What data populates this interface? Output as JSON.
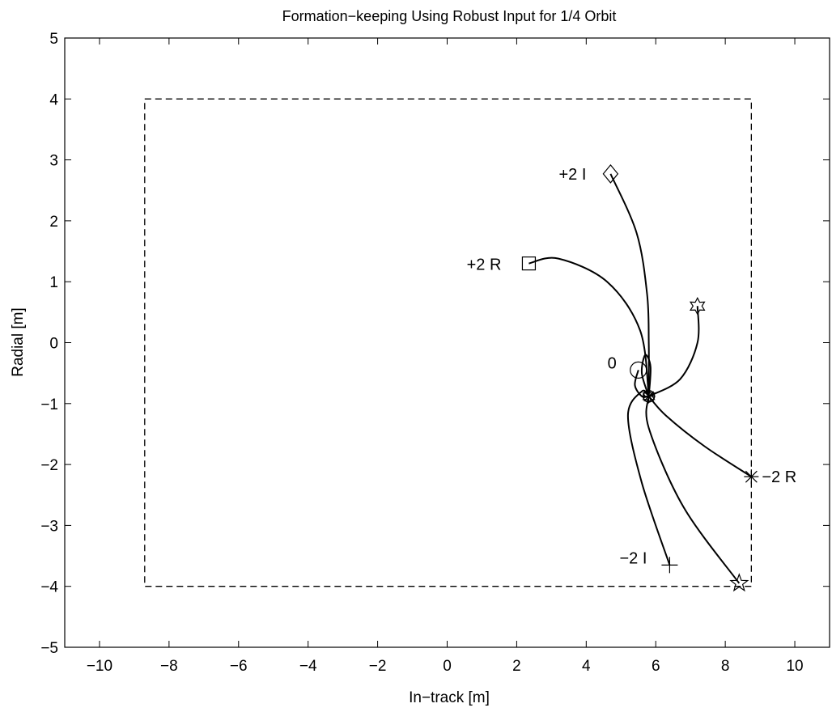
{
  "chart_data": {
    "type": "line",
    "title": "Formation−keeping Using Robust Input for 1/4 Orbit",
    "xlabel": "In−track [m]",
    "ylabel": "Radial [m]",
    "xlim": [
      -11,
      11
    ],
    "ylim": [
      -5,
      5
    ],
    "xticks": [
      -10,
      -8,
      -6,
      -4,
      -2,
      0,
      2,
      4,
      6,
      8,
      10
    ],
    "xtick_labels": [
      "−10",
      "−8",
      "−6",
      "−4",
      "−2",
      "0",
      "2",
      "4",
      "6",
      "8",
      "10"
    ],
    "yticks": [
      -5,
      -4,
      -3,
      -2,
      -1,
      0,
      1,
      2,
      3,
      4,
      5
    ],
    "ytick_labels": [
      "−5",
      "−4",
      "−3",
      "−2",
      "−1",
      "0",
      "1",
      "2",
      "3",
      "4",
      "5"
    ],
    "grid": false,
    "boundary_box": {
      "x": [
        -8.7,
        8.75
      ],
      "y": [
        -4,
        4
      ],
      "style": "dashed"
    },
    "end_point": {
      "x": 5.8,
      "y": -0.88
    },
    "trajectories": [
      {
        "label": "+2 I",
        "marker": "diamond",
        "start": [
          4.7,
          2.77
        ],
        "points": [
          [
            4.7,
            2.77
          ],
          [
            5.45,
            1.8
          ],
          [
            5.75,
            0.8
          ],
          [
            5.8,
            0.0
          ],
          [
            5.8,
            -0.88
          ]
        ]
      },
      {
        "label": "+2 R",
        "marker": "square",
        "start": [
          2.35,
          1.3
        ],
        "points": [
          [
            2.35,
            1.3
          ],
          [
            3.2,
            1.38
          ],
          [
            4.6,
            1.0
          ],
          [
            5.55,
            0.2
          ],
          [
            5.8,
            -0.88
          ]
        ]
      },
      {
        "label": "",
        "marker": "hexagram",
        "start": [
          7.2,
          0.6
        ],
        "points": [
          [
            7.2,
            0.6
          ],
          [
            7.2,
            0.0
          ],
          [
            6.7,
            -0.6
          ],
          [
            5.8,
            -0.88
          ]
        ]
      },
      {
        "label": "0",
        "marker": "circle",
        "start": [
          5.5,
          -0.45
        ],
        "points": [
          [
            5.5,
            -0.45
          ],
          [
            5.4,
            -0.7
          ],
          [
            5.6,
            -0.88
          ],
          [
            5.8,
            -0.88
          ]
        ]
      },
      {
        "label": "",
        "marker": "none",
        "start": [
          5.8,
          -0.88
        ],
        "points": [
          [
            5.8,
            -0.88
          ],
          [
            5.6,
            -0.5
          ],
          [
            5.7,
            -0.2
          ],
          [
            5.85,
            -0.4
          ],
          [
            5.8,
            -0.88
          ]
        ]
      },
      {
        "label": "−2 R",
        "marker": "asterisk",
        "start": [
          8.75,
          -2.2
        ],
        "points": [
          [
            8.75,
            -2.2
          ],
          [
            7.4,
            -1.7
          ],
          [
            6.3,
            -1.2
          ],
          [
            5.8,
            -0.88
          ]
        ]
      },
      {
        "label": "−2 I",
        "marker": "plus",
        "start": [
          6.4,
          -3.65
        ],
        "points": [
          [
            6.4,
            -3.65
          ],
          [
            5.6,
            -2.3
          ],
          [
            5.2,
            -1.2
          ],
          [
            5.6,
            -0.8
          ],
          [
            5.8,
            -0.88
          ]
        ]
      },
      {
        "label": "",
        "marker": "pentagram",
        "start": [
          8.4,
          -3.95
        ],
        "points": [
          [
            8.4,
            -3.95
          ],
          [
            6.8,
            -2.7
          ],
          [
            5.8,
            -1.4
          ],
          [
            5.8,
            -0.88
          ]
        ]
      }
    ]
  }
}
